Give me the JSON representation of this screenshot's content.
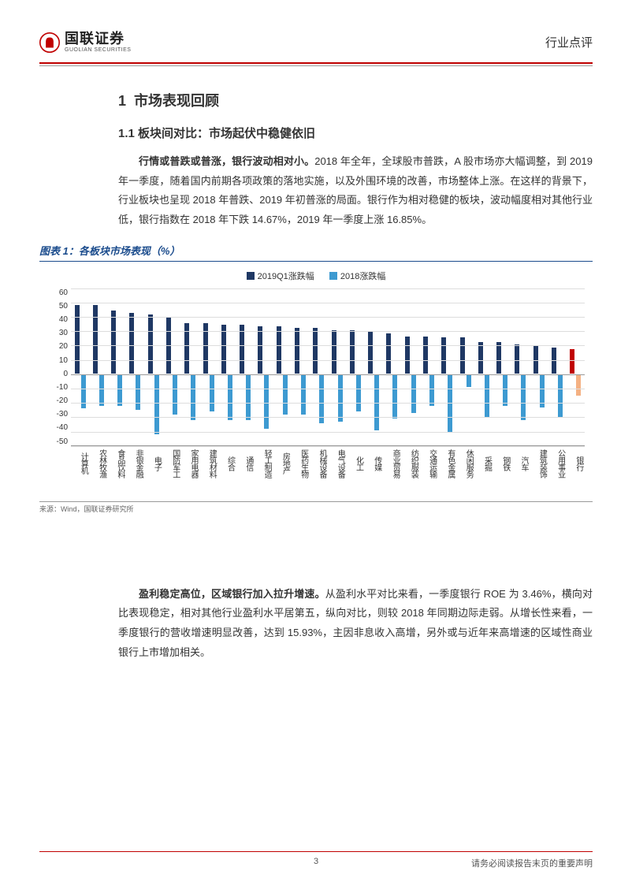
{
  "header": {
    "logo_cn": "国联证券",
    "logo_en": "GUOLIAN SECURITIES",
    "doc_type": "行业点评"
  },
  "section": {
    "h1_num": "1",
    "h1_text": "市场表现回顾",
    "h2": "1.1 板块间对比：市场起伏中稳健依旧",
    "para1_lead": "行情或普跌或普涨，银行波动相对小。",
    "para1_body": "2018 年全年，全球股市普跌，A 股市场亦大幅调整，到 2019 年一季度，随着国内前期各项政策的落地实施，以及外围环境的改善，市场整体上涨。在这样的背景下，行业板块也呈现 2018 年普跌、2019 年初普涨的局面。银行作为相对稳健的板块，波动幅度相对其他行业低，银行指数在 2018 年下跌 14.67%，2019 年一季度上涨 16.85%。",
    "para2_lead": "盈利稳定高位，区域银行加入拉升增速。",
    "para2_body": "从盈利水平对比来看，一季度银行 ROE 为 3.46%，横向对比表现稳定，相对其他行业盈利水平居第五，纵向对比，则较 2018 年同期边际走弱。从增长性来看，一季度银行的营收增速明显改善，达到 15.93%，主因非息收入高增，另外或与近年来高增速的区域性商业银行上市增加相关。"
  },
  "chart": {
    "title": "图表 1：各板块市场表现（%）",
    "source": "来源：Wind，国联证券研究所",
    "legend": {
      "s1": "2019Q1涨跌幅",
      "s2": "2018涨跌幅"
    },
    "colors": {
      "s1_default": "#1f3864",
      "s2_default": "#3d9ad1",
      "s1_highlight": "#c00000",
      "s2_highlight": "#f4b183",
      "grid": "#dddddd",
      "axis": "#999999"
    },
    "y_axis": {
      "min": -50,
      "max": 60,
      "step": 10,
      "ticks": [
        60,
        50,
        40,
        30,
        20,
        10,
        0,
        -10,
        -20,
        -30,
        -40,
        -50
      ]
    },
    "categories": [
      "计算机",
      "农林牧渔",
      "食品饮料",
      "非银金融",
      "电子",
      "国防军工",
      "家用电器",
      "建筑材料",
      "综合",
      "通信",
      "轻工制造",
      "房地产",
      "医药生物",
      "机械设备",
      "电气设备",
      "化工",
      "传媒",
      "商业贸易",
      "纺织服装",
      "交通运输",
      "有色金属",
      "休闲服务",
      "采掘",
      "钢铁",
      "汽车",
      "建筑装饰",
      "公用事业",
      "银行"
    ],
    "series1_2019q1": [
      48,
      48,
      44,
      42,
      41,
      39,
      35,
      35,
      34,
      34,
      33,
      33,
      32,
      32,
      30,
      30,
      29,
      28,
      26,
      26,
      25,
      25,
      22,
      22,
      20,
      19,
      18,
      17
    ],
    "series2_2018": [
      -24,
      -22,
      -22,
      -25,
      -42,
      -28,
      -32,
      -26,
      -32,
      -32,
      -38,
      -28,
      -28,
      -34,
      -33,
      -26,
      -39,
      -31,
      -27,
      -22,
      -41,
      -9,
      -30,
      -22,
      -32,
      -23,
      -30,
      -15
    ],
    "highlight_index": 27
  },
  "footer": {
    "page": "3",
    "disclaimer": "请务必阅读报告末页的重要声明"
  }
}
